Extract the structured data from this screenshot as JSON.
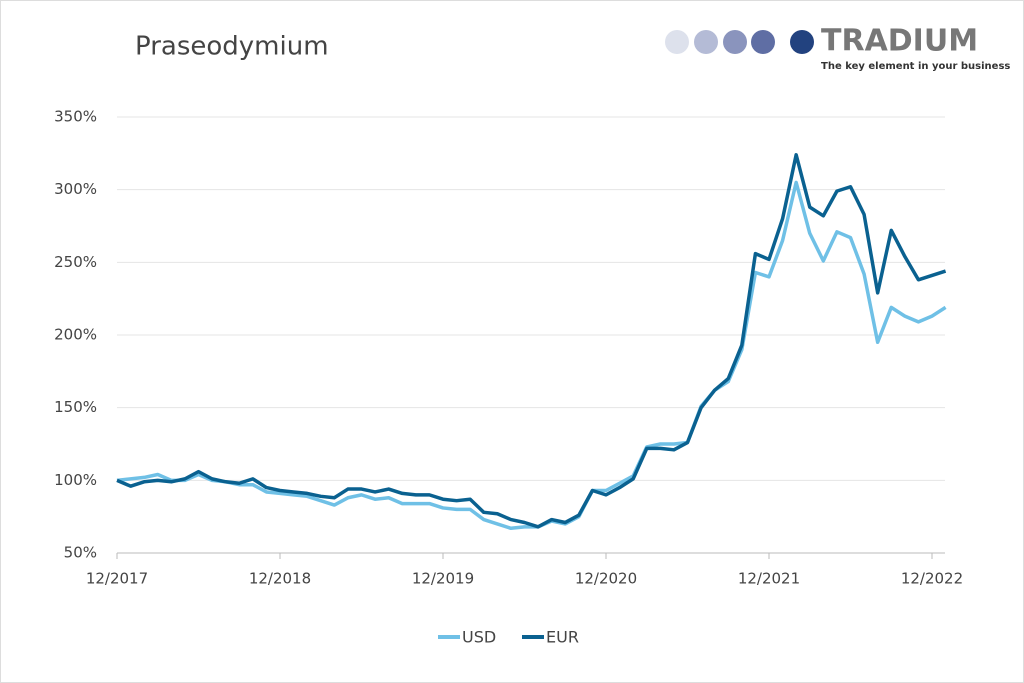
{
  "chart_data": {
    "type": "line",
    "title": "Praseodymium",
    "logo": {
      "name": "TRADIUM",
      "tagline": "The key element in your business"
    },
    "x": [
      "12/2017",
      "01/2018",
      "02/2018",
      "03/2018",
      "04/2018",
      "05/2018",
      "06/2018",
      "07/2018",
      "08/2018",
      "09/2018",
      "10/2018",
      "11/2018",
      "12/2018",
      "01/2019",
      "02/2019",
      "03/2019",
      "04/2019",
      "05/2019",
      "06/2019",
      "07/2019",
      "08/2019",
      "09/2019",
      "10/2019",
      "11/2019",
      "12/2019",
      "01/2020",
      "02/2020",
      "03/2020",
      "04/2020",
      "05/2020",
      "06/2020",
      "07/2020",
      "08/2020",
      "09/2020",
      "10/2020",
      "11/2020",
      "12/2020",
      "01/2021",
      "02/2021",
      "03/2021",
      "04/2021",
      "05/2021",
      "06/2021",
      "07/2021",
      "08/2021",
      "09/2021",
      "10/2021",
      "11/2021",
      "12/2021",
      "01/2022",
      "02/2022",
      "03/2022",
      "04/2022",
      "05/2022",
      "06/2022",
      "07/2022",
      "08/2022",
      "09/2022",
      "10/2022",
      "11/2022",
      "12/2022",
      "01/2023"
    ],
    "series": [
      {
        "name": "USD",
        "color": "#6fc0e6",
        "values": [
          100,
          101,
          102,
          104,
          100,
          100,
          104,
          100,
          99,
          97,
          97,
          92,
          91,
          90,
          89,
          86,
          83,
          88,
          90,
          87,
          88,
          84,
          84,
          84,
          81,
          80,
          80,
          73,
          70,
          67,
          68,
          68,
          72,
          70,
          75,
          93,
          93,
          98,
          103,
          123,
          125,
          125,
          126,
          151,
          162,
          168,
          190,
          243,
          240,
          265,
          305,
          270,
          251,
          271,
          267,
          242,
          195,
          219,
          213,
          209,
          213,
          219
        ]
      },
      {
        "name": "EUR",
        "color": "#0a6190",
        "values": [
          100,
          96,
          99,
          100,
          99,
          101,
          106,
          101,
          99,
          98,
          101,
          95,
          93,
          92,
          91,
          89,
          88,
          94,
          94,
          92,
          94,
          91,
          90,
          90,
          87,
          86,
          87,
          78,
          77,
          73,
          71,
          68,
          73,
          71,
          76,
          93,
          90,
          95,
          101,
          122,
          122,
          121,
          126,
          150,
          162,
          170,
          193,
          256,
          252,
          280,
          324,
          288,
          282,
          299,
          302,
          283,
          229,
          272,
          254,
          238,
          241,
          244
        ]
      }
    ],
    "ylim": [
      50,
      350
    ],
    "yticks": [
      {
        "value": 50,
        "label": "50%"
      },
      {
        "value": 100,
        "label": "100%"
      },
      {
        "value": 150,
        "label": "150%"
      },
      {
        "value": 200,
        "label": "200%"
      },
      {
        "value": 250,
        "label": "250%"
      },
      {
        "value": 300,
        "label": "300%"
      },
      {
        "value": 350,
        "label": "350%"
      }
    ],
    "xticks": [
      "12/2017",
      "12/2018",
      "12/2019",
      "12/2020",
      "12/2021",
      "12/2022"
    ],
    "grid": true,
    "legend": "bottom"
  }
}
